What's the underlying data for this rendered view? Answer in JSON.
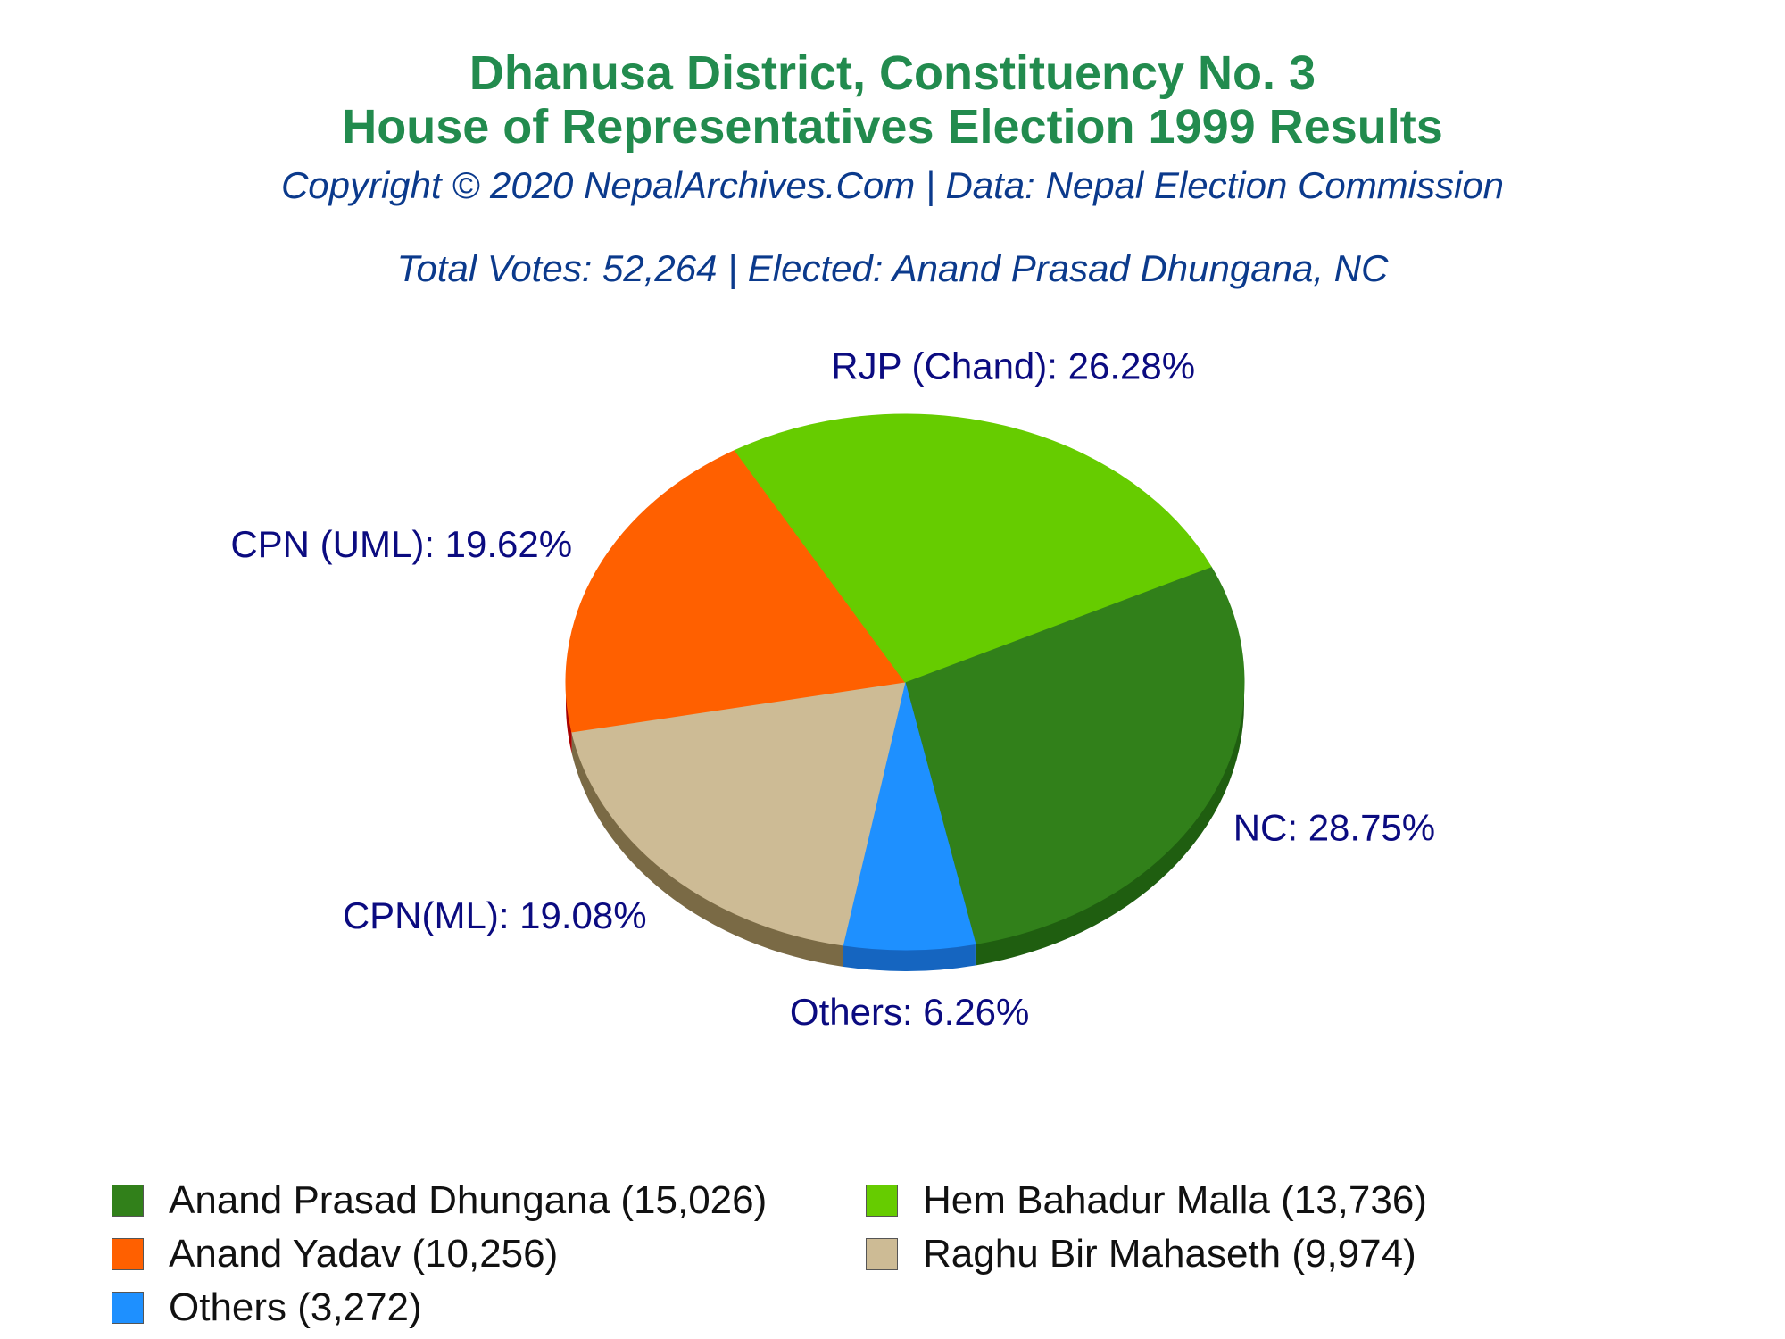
{
  "header": {
    "title_line1": "Dhanusa District, Constituency No. 3",
    "title_line2": "House of Representatives Election 1999 Results",
    "copyright": "Copyright © 2020 NepalArchives.Com | Data: Nepal Election Commission",
    "summary": "Total Votes: 52,264 | Elected: Anand Prasad Dhungana, NC"
  },
  "chart_data": {
    "type": "pie",
    "slices": [
      {
        "label": "NC: 28.75%",
        "value": 28.75,
        "color": "#31801A",
        "side_color": "#1F5E10"
      },
      {
        "label": "Others: 6.26%",
        "value": 6.26,
        "color": "#1E90FF",
        "side_color": "#1565C0"
      },
      {
        "label": "CPN(ML): 19.08%",
        "value": 19.08,
        "color": "#CDBB95",
        "side_color": "#7A6A45"
      },
      {
        "label": "CPN (UML): 19.62%",
        "value": 19.62,
        "color": "#FF6000",
        "side_color": "#A80000"
      },
      {
        "label": "RJP (Chand): 26.28%",
        "value": 26.28,
        "color": "#66CC00",
        "side_color": "#157000"
      }
    ],
    "legend": [
      {
        "label": "Anand Prasad Dhungana (15,026)",
        "color": "#31801A"
      },
      {
        "label": "Hem Bahadur Malla (13,736)",
        "color": "#66CC00"
      },
      {
        "label": "Anand Yadav (10,256)",
        "color": "#FF6000"
      },
      {
        "label": "Raghu Bir Mahaseth (9,974)",
        "color": "#CDBB95"
      },
      {
        "label": "Others (3,272)",
        "color": "#1E90FF"
      }
    ],
    "legend_placement": "bottom",
    "label_color": "#0B0B80"
  }
}
